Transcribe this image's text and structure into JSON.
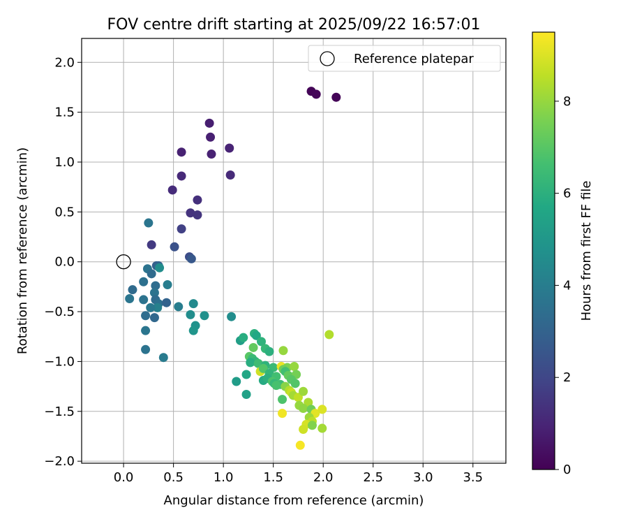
{
  "chart_data": {
    "type": "scatter",
    "title": "FOV centre drift starting at 2025/09/22 16:57:01",
    "xlabel": "Angular distance from reference (arcmin)",
    "ylabel": "Rotation from reference (arcmin)",
    "xlim": [
      -0.42,
      3.83
    ],
    "ylim": [
      -2.02,
      2.24
    ],
    "xticks": [
      "0.0",
      "0.5",
      "1.0",
      "1.5",
      "2.0",
      "2.5",
      "3.0",
      "3.5"
    ],
    "xtick_values": [
      0,
      0.5,
      1.0,
      1.5,
      2.0,
      2.5,
      3.0,
      3.5
    ],
    "yticks": [
      "2.0",
      "1.5",
      "1.0",
      "0.5",
      "0.0",
      "−0.5",
      "−1.0",
      "−1.5",
      "−2.0"
    ],
    "ytick_values": [
      2.0,
      1.5,
      1.0,
      0.5,
      0.0,
      -0.5,
      -1.0,
      -1.5,
      -2.0
    ],
    "grid": true,
    "legend": {
      "position": "top-right",
      "entries": [
        {
          "label": "Reference platepar",
          "marker": "open-circle"
        }
      ]
    },
    "reference_point": {
      "x": 0.0,
      "y": 0.0
    },
    "colorbar": {
      "label": "Hours from first FF file",
      "range": [
        0,
        9.5
      ],
      "ticks": [
        "0",
        "2",
        "4",
        "6",
        "8"
      ],
      "tick_values": [
        0,
        2,
        4,
        6,
        8
      ],
      "colormap": "viridis"
    },
    "points": [
      {
        "x": 2.13,
        "y": 1.65,
        "t": 0.1
      },
      {
        "x": 1.88,
        "y": 1.71,
        "t": 0.1
      },
      {
        "x": 1.93,
        "y": 1.68,
        "t": 0.15
      },
      {
        "x": 0.86,
        "y": 1.39,
        "t": 0.8
      },
      {
        "x": 0.87,
        "y": 1.25,
        "t": 0.85
      },
      {
        "x": 0.58,
        "y": 1.1,
        "t": 0.9
      },
      {
        "x": 0.88,
        "y": 1.08,
        "t": 0.9
      },
      {
        "x": 1.06,
        "y": 1.14,
        "t": 0.95
      },
      {
        "x": 0.58,
        "y": 0.86,
        "t": 1.1
      },
      {
        "x": 1.07,
        "y": 0.87,
        "t": 1.15
      },
      {
        "x": 0.49,
        "y": 0.72,
        "t": 1.2
      },
      {
        "x": 0.74,
        "y": 0.62,
        "t": 1.3
      },
      {
        "x": 0.67,
        "y": 0.49,
        "t": 1.4
      },
      {
        "x": 0.74,
        "y": 0.47,
        "t": 1.45
      },
      {
        "x": 0.58,
        "y": 0.33,
        "t": 1.8
      },
      {
        "x": 0.28,
        "y": 0.17,
        "t": 1.6
      },
      {
        "x": 0.51,
        "y": 0.15,
        "t": 2.4
      },
      {
        "x": 0.66,
        "y": 0.05,
        "t": 2.2
      },
      {
        "x": 0.68,
        "y": 0.03,
        "t": 2.6
      },
      {
        "x": 0.25,
        "y": 0.39,
        "t": 3.7
      },
      {
        "x": 0.24,
        "y": -0.07,
        "t": 3.6
      },
      {
        "x": 0.33,
        "y": -0.04,
        "t": 2.9
      },
      {
        "x": 0.35,
        "y": -0.04,
        "t": 3.0
      },
      {
        "x": 0.36,
        "y": -0.06,
        "t": 4.6
      },
      {
        "x": 0.28,
        "y": -0.12,
        "t": 3.3
      },
      {
        "x": 0.09,
        "y": -0.28,
        "t": 3.3
      },
      {
        "x": 0.2,
        "y": -0.2,
        "t": 3.5
      },
      {
        "x": 0.32,
        "y": -0.24,
        "t": 3.4
      },
      {
        "x": 0.44,
        "y": -0.23,
        "t": 4.0
      },
      {
        "x": 0.31,
        "y": -0.31,
        "t": 3.6
      },
      {
        "x": 0.06,
        "y": -0.37,
        "t": 3.7
      },
      {
        "x": 0.2,
        "y": -0.38,
        "t": 3.6
      },
      {
        "x": 0.32,
        "y": -0.38,
        "t": 3.3
      },
      {
        "x": 0.35,
        "y": -0.42,
        "t": 3.5
      },
      {
        "x": 0.34,
        "y": -0.46,
        "t": 4.1
      },
      {
        "x": 0.27,
        "y": -0.46,
        "t": 3.8
      },
      {
        "x": 0.43,
        "y": -0.41,
        "t": 3.0
      },
      {
        "x": 0.55,
        "y": -0.45,
        "t": 4.0
      },
      {
        "x": 0.22,
        "y": -0.54,
        "t": 3.4
      },
      {
        "x": 0.31,
        "y": -0.56,
        "t": 3.2
      },
      {
        "x": 0.22,
        "y": -0.69,
        "t": 3.7
      },
      {
        "x": 0.22,
        "y": -0.88,
        "t": 3.6
      },
      {
        "x": 0.4,
        "y": -0.96,
        "t": 3.9
      },
      {
        "x": 0.7,
        "y": -0.42,
        "t": 4.5
      },
      {
        "x": 0.67,
        "y": -0.53,
        "t": 4.6
      },
      {
        "x": 0.81,
        "y": -0.54,
        "t": 4.7
      },
      {
        "x": 0.72,
        "y": -0.64,
        "t": 4.8
      },
      {
        "x": 0.7,
        "y": -0.69,
        "t": 4.9
      },
      {
        "x": 1.08,
        "y": -0.55,
        "t": 4.6
      },
      {
        "x": 1.17,
        "y": -0.79,
        "t": 5.3
      },
      {
        "x": 1.2,
        "y": -0.76,
        "t": 5.9
      },
      {
        "x": 1.31,
        "y": -0.72,
        "t": 6.0
      },
      {
        "x": 1.33,
        "y": -0.74,
        "t": 5.7
      },
      {
        "x": 1.38,
        "y": -0.8,
        "t": 6.1
      },
      {
        "x": 1.3,
        "y": -0.86,
        "t": 7.2
      },
      {
        "x": 1.42,
        "y": -0.87,
        "t": 6.3
      },
      {
        "x": 1.46,
        "y": -0.9,
        "t": 6.0
      },
      {
        "x": 1.26,
        "y": -0.95,
        "t": 7.0
      },
      {
        "x": 1.29,
        "y": -0.97,
        "t": 6.4
      },
      {
        "x": 1.32,
        "y": -1.0,
        "t": 6.2
      },
      {
        "x": 1.27,
        "y": -1.01,
        "t": 5.9
      },
      {
        "x": 1.35,
        "y": -1.02,
        "t": 6.5
      },
      {
        "x": 1.42,
        "y": -1.04,
        "t": 6.1
      },
      {
        "x": 1.37,
        "y": -1.1,
        "t": 8.8
      },
      {
        "x": 1.4,
        "y": -1.07,
        "t": 6.9
      },
      {
        "x": 1.5,
        "y": -1.06,
        "t": 6.4
      },
      {
        "x": 1.46,
        "y": -1.12,
        "t": 6.2
      },
      {
        "x": 1.53,
        "y": -1.15,
        "t": 6.6
      },
      {
        "x": 1.4,
        "y": -1.19,
        "t": 5.8
      },
      {
        "x": 1.44,
        "y": -1.17,
        "t": 6.0
      },
      {
        "x": 1.49,
        "y": -1.2,
        "t": 6.8
      },
      {
        "x": 1.51,
        "y": -1.22,
        "t": 6.3
      },
      {
        "x": 1.57,
        "y": -1.23,
        "t": 6.5
      },
      {
        "x": 1.53,
        "y": -1.24,
        "t": 6.7
      },
      {
        "x": 1.23,
        "y": -1.13,
        "t": 5.6
      },
      {
        "x": 1.13,
        "y": -1.2,
        "t": 5.2
      },
      {
        "x": 1.23,
        "y": -1.33,
        "t": 5.4
      },
      {
        "x": 1.6,
        "y": -0.89,
        "t": 8.0
      },
      {
        "x": 1.58,
        "y": -1.05,
        "t": 9.2
      },
      {
        "x": 1.64,
        "y": -1.06,
        "t": 7.6
      },
      {
        "x": 1.71,
        "y": -1.05,
        "t": 8.0
      },
      {
        "x": 1.6,
        "y": -1.08,
        "t": 7.4
      },
      {
        "x": 1.62,
        "y": -1.1,
        "t": 6.6
      },
      {
        "x": 1.65,
        "y": -1.14,
        "t": 7.2
      },
      {
        "x": 1.73,
        "y": -1.13,
        "t": 7.5
      },
      {
        "x": 1.68,
        "y": -1.18,
        "t": 7.0
      },
      {
        "x": 1.72,
        "y": -1.22,
        "t": 6.9
      },
      {
        "x": 1.62,
        "y": -1.25,
        "t": 7.8
      },
      {
        "x": 1.66,
        "y": -1.29,
        "t": 8.4
      },
      {
        "x": 1.68,
        "y": -1.31,
        "t": 8.7
      },
      {
        "x": 1.59,
        "y": -1.38,
        "t": 6.8
      },
      {
        "x": 1.7,
        "y": -1.34,
        "t": 8.2
      },
      {
        "x": 1.75,
        "y": -1.36,
        "t": 8.6
      },
      {
        "x": 1.8,
        "y": -1.3,
        "t": 8.1
      },
      {
        "x": 1.85,
        "y": -1.41,
        "t": 8.3
      },
      {
        "x": 1.76,
        "y": -1.44,
        "t": 8.0
      },
      {
        "x": 1.8,
        "y": -1.47,
        "t": 7.9
      },
      {
        "x": 1.88,
        "y": -1.48,
        "t": 7.4
      },
      {
        "x": 1.92,
        "y": -1.52,
        "t": 9.1
      },
      {
        "x": 1.99,
        "y": -1.48,
        "t": 9.0
      },
      {
        "x": 1.59,
        "y": -1.52,
        "t": 9.3
      },
      {
        "x": 1.86,
        "y": -1.56,
        "t": 8.1
      },
      {
        "x": 1.89,
        "y": -1.6,
        "t": 8.5
      },
      {
        "x": 1.83,
        "y": -1.63,
        "t": 8.9
      },
      {
        "x": 1.8,
        "y": -1.68,
        "t": 8.8
      },
      {
        "x": 1.89,
        "y": -1.64,
        "t": 7.7
      },
      {
        "x": 1.99,
        "y": -1.67,
        "t": 8.2
      },
      {
        "x": 1.77,
        "y": -1.84,
        "t": 9.4
      },
      {
        "x": 2.06,
        "y": -0.73,
        "t": 8.4
      }
    ]
  }
}
